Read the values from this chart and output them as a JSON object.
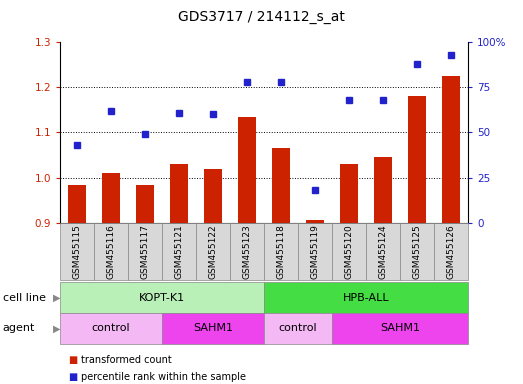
{
  "title": "GDS3717 / 214112_s_at",
  "samples": [
    "GSM455115",
    "GSM455116",
    "GSM455117",
    "GSM455121",
    "GSM455122",
    "GSM455123",
    "GSM455118",
    "GSM455119",
    "GSM455120",
    "GSM455124",
    "GSM455125",
    "GSM455126"
  ],
  "bar_values": [
    0.983,
    1.01,
    0.984,
    1.03,
    1.02,
    1.135,
    1.065,
    0.905,
    1.03,
    1.045,
    1.18,
    1.225
  ],
  "dot_values_pct": [
    43,
    62,
    49,
    61,
    60,
    78,
    78,
    18,
    68,
    68,
    88,
    93
  ],
  "ylim_left": [
    0.9,
    1.3
  ],
  "ylim_right": [
    0,
    100
  ],
  "yticks_left": [
    0.9,
    1.0,
    1.1,
    1.2,
    1.3
  ],
  "yticks_right": [
    0,
    25,
    50,
    75,
    100
  ],
  "bar_color": "#cc2200",
  "dot_color": "#2222cc",
  "cell_line_groups": [
    {
      "label": "KOPT-K1",
      "start": 0,
      "end": 6,
      "color": "#b8f0b8"
    },
    {
      "label": "HPB-ALL",
      "start": 6,
      "end": 12,
      "color": "#44dd44"
    }
  ],
  "agent_groups": [
    {
      "label": "control",
      "start": 0,
      "end": 3,
      "color": "#f4b8f4"
    },
    {
      "label": "SAHM1",
      "start": 3,
      "end": 6,
      "color": "#ee44ee"
    },
    {
      "label": "control",
      "start": 6,
      "end": 8,
      "color": "#f4b8f4"
    },
    {
      "label": "SAHM1",
      "start": 8,
      "end": 12,
      "color": "#ee44ee"
    }
  ],
  "legend_items": [
    {
      "label": "transformed count",
      "color": "#cc2200"
    },
    {
      "label": "percentile rank within the sample",
      "color": "#2222cc"
    }
  ],
  "gridline_values": [
    1.0,
    1.1,
    1.2
  ],
  "bar_bottom": 0.9,
  "label_fontsize": 8,
  "tick_fontsize": 7.5,
  "xlabel_fontsize": 6.5,
  "title_fontsize": 10
}
